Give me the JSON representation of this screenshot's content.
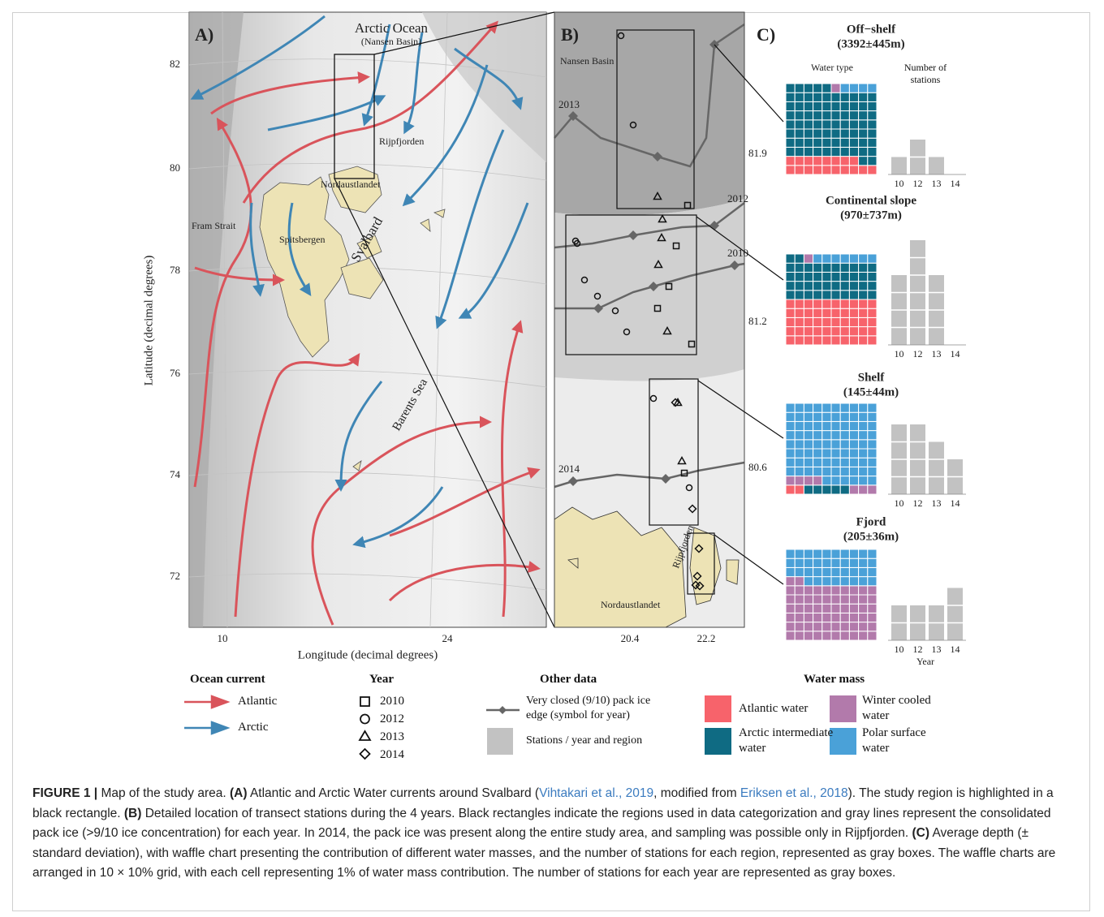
{
  "panel_a": {
    "tag": "A)",
    "labels": [
      "Arctic Ocean",
      "(Nansen Basin)",
      "Rijpfjorden",
      "Nordaustlandet",
      "Fram Strait",
      "Spitsbergen",
      "Svalbard",
      "Barents Sea"
    ],
    "yticks": [
      "82",
      "80",
      "78",
      "76",
      "74",
      "72"
    ],
    "xticks": [
      "10",
      "24"
    ],
    "ylabel": "Latitude (decimal degrees)",
    "xlabel": "Longitude (decimal degrees)"
  },
  "panel_b": {
    "tag": "B)",
    "labels": [
      "Nansen Basin",
      "Nordaustlandet",
      "Rijpfjorden"
    ],
    "ice_years": [
      "2013",
      "2012",
      "2010",
      "2014"
    ],
    "yticks": [
      "81.9",
      "81.2",
      "80.6"
    ],
    "xticks": [
      "20.4",
      "22.2"
    ]
  },
  "panel_c": {
    "tag": "C)",
    "water_type_label": "Water type",
    "stations_label": "Number of stations",
    "year_label": "Year",
    "years": [
      "10",
      "12",
      "13",
      "14"
    ],
    "bar_color": "#c2c2c2",
    "water_masses": [
      {
        "name": "Atlantic water",
        "color": "#f7636b"
      },
      {
        "name": "Arctic intermediate water",
        "color": "#0f6b83"
      },
      {
        "name": "Winter cooled water",
        "color": "#b27aab"
      },
      {
        "name": "Polar surface water",
        "color": "#4aa1d8"
      }
    ],
    "regions": [
      {
        "name": "Off−shelf",
        "depth": "(3392±445m)",
        "percent": [
          18,
          77,
          1,
          4
        ],
        "stations": [
          1,
          2,
          1,
          0
        ]
      },
      {
        "name": "Continental slope",
        "depth": "(970±737m)",
        "percent": [
          50,
          42,
          1,
          7
        ],
        "stations": [
          4,
          6,
          4,
          0
        ]
      },
      {
        "name": "Shelf",
        "depth": "(145±44m)",
        "percent": [
          2,
          5,
          7,
          86
        ],
        "stations": [
          4,
          4,
          3,
          2
        ]
      },
      {
        "name": "Fjord",
        "depth": "(205±36m)",
        "percent": [
          0,
          0,
          62,
          38
        ],
        "stations": [
          2,
          2,
          2,
          3
        ]
      }
    ]
  },
  "legend": {
    "ocean_current": {
      "title": "Ocean current",
      "items": [
        {
          "name": "Atlantic",
          "color": "#d9545b"
        },
        {
          "name": "Arctic",
          "color": "#3f86b5"
        }
      ]
    },
    "year": {
      "title": "Year",
      "items": [
        "2010",
        "2012",
        "2013",
        "2014"
      ]
    },
    "other": {
      "title": "Other data",
      "items": [
        "Very closed (9/10) pack ice edge (symbol for year)",
        "Stations / year and region"
      ]
    },
    "water_mass_title": "Water mass"
  },
  "caption": [
    "FIGURE 1 |",
    " Map of the study area. ",
    "(A)",
    " Atlantic and Arctic Water currents around Svalbard (",
    "Vihtakari et al., 2019",
    ", modified from ",
    "Eriksen et al., 2018",
    "). The study region is highlighted in a black rectangle. ",
    "(B)",
    " Detailed location of transect stations during the 4 years. Black rectangles indicate the regions used in data categorization and gray lines represent the consolidated pack ice (>9/10 ice concentration) for each year. In 2014, the pack ice was present along the entire study area, and sampling was possible only in Rijpfjorden. ",
    "(C)",
    " Average depth (± standard deviation), with waffle chart presenting the contribution of different water masses, and the number of stations for each region, represented as gray boxes. The waffle charts are arranged in 10 × 10% grid, with each cell representing 1% of water mass contribution. The number of stations for each year are represented as gray boxes."
  ]
}
